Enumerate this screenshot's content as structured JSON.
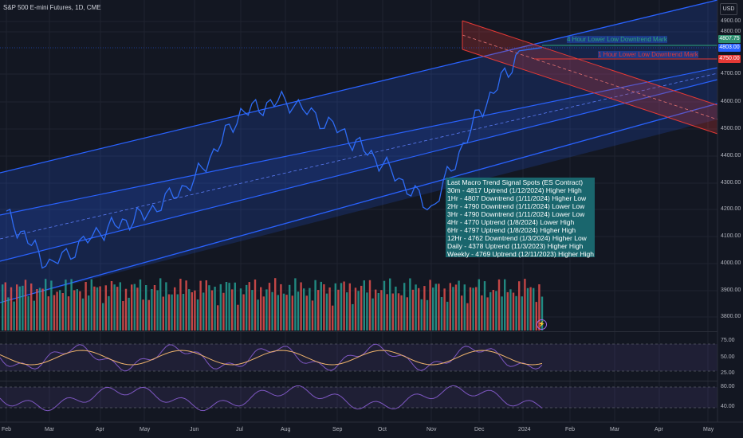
{
  "header": {
    "symbol_title": "S&P 500 E-mini Futures, 1D, CME",
    "currency": "USD"
  },
  "price_tags": [
    {
      "label": "4807.75",
      "color": "#2e8f70"
    },
    {
      "label": "4803.00",
      "color": "#2962ff"
    },
    {
      "label": "4750.00",
      "color": "#e53935"
    }
  ],
  "annotations": {
    "upper": {
      "text": "4 Hour Lower Low Downtrend Mark",
      "color": "#2ca67a"
    },
    "lower": {
      "text": "1 Hour Lower Low Downtrend Mark",
      "color": "#e53935"
    }
  },
  "legend": {
    "title": "Last Macro Trend Signal Spots (ES Contract)",
    "lines": [
      "30m - 4817 Uptrend (1/12/2024) Higher High",
      "1Hr - 4807 Downtrend (1/11/2024) Higher Low",
      "2Hr - 4790 Downtrend (1/11/2024) Lower Low",
      "3Hr - 4790 Downtrend (1/11/2024) Lower Low",
      "4Hr - 4770 Uptrend (1/8/2024) Lower High",
      "6Hr - 4797 Uptrend (1/8/2024) Higher High",
      "12Hr - 4762 Downtrend (1/3/2024) Higher Low",
      "Daily - 4378 Uptrend (11/3/2023) Higher High",
      "Weekly - 4769 Uptrend (12/11/2023) Higher High"
    ]
  },
  "price_axis": [
    "4900.00",
    "4800.00",
    "4700.00",
    "4600.00",
    "4500.00",
    "4400.00",
    "4300.00",
    "4200.00",
    "4100.00",
    "4000.00",
    "3900.00",
    "3800.00"
  ],
  "osc1_axis": [
    "75.00",
    "50.00",
    "25.00"
  ],
  "osc2_axis": [
    "80.00",
    "40.00"
  ],
  "time_axis": [
    "Feb",
    "Mar",
    "Apr",
    "May",
    "Jun",
    "Jul",
    "Aug",
    "Sep",
    "Oct",
    "Nov",
    "Dec",
    "2024",
    "Feb",
    "Mar",
    "Apr",
    "May"
  ],
  "chart_data": {
    "type": "line",
    "title": "S&P 500 E-mini Futures, 1D, CME",
    "ylabel": "USD",
    "ylim": [
      3750,
      4950
    ],
    "x": [
      "Feb",
      "Mar",
      "Apr",
      "May",
      "Jun",
      "Jul",
      "Aug",
      "Sep",
      "Oct",
      "Nov",
      "Dec",
      "2024"
    ],
    "series": [
      {
        "name": "price",
        "values": [
          4180,
          3990,
          4120,
          4180,
          4310,
          4560,
          4610,
          4500,
          4370,
          4200,
          4560,
          4800
        ]
      }
    ],
    "grid": true
  },
  "colors": {
    "background": "#131722",
    "channel_blue": "#2962ff",
    "channel_red": "#e53935",
    "volume_up": "#26a69a",
    "volume_down": "#ef5350",
    "osc": "#7e57c2"
  }
}
